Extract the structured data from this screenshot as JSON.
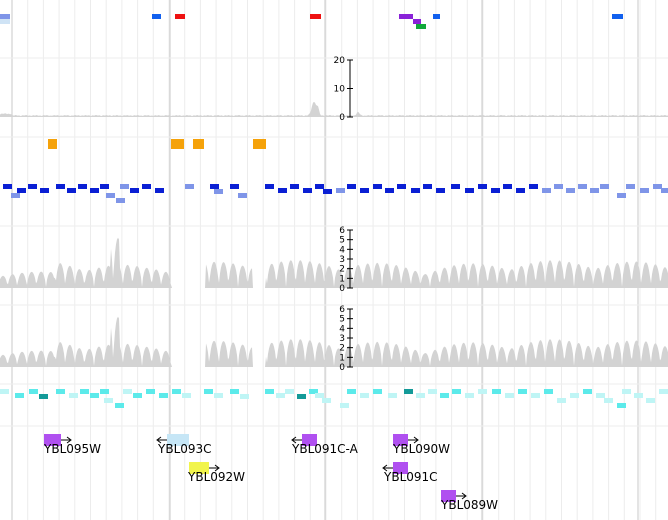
{
  "colors": {
    "grid_major": "#c8c8c8",
    "grid_minor": "#ececec",
    "coverage": "#d3d3d3",
    "tile_dark_blue": "#0a1fd4",
    "tile_light_blue": "#7f95e8",
    "tile_bright_blue": "#1160ee",
    "tile_red": "#ee1111",
    "tile_purple": "#8a22d8",
    "tile_green": "#11a83a",
    "tile_orange": "#f5a20a",
    "tile_cyan": "#5ceaea",
    "tile_pale_cyan": "#bff5f5",
    "tile_teal": "#139a98",
    "gene_violet": "#b050f0",
    "gene_light_blue": "#c6e6f6",
    "gene_yellow": "#f1f44c"
  },
  "tracks": {
    "signal_1": {
      "axis_ticks": [
        "20",
        "10",
        "0"
      ],
      "max": 20
    },
    "signal_2": {
      "axis_ticks": [
        "6",
        "5",
        "4",
        "3",
        "2",
        "1",
        "0"
      ],
      "max": 6
    },
    "signal_3": {
      "axis_ticks": [
        "6",
        "5",
        "4",
        "3",
        "2",
        "1",
        "0"
      ],
      "max": 6
    }
  },
  "genes": [
    {
      "name": "YBL095W",
      "strand": "+",
      "color": "gene_violet"
    },
    {
      "name": "YBL093C",
      "strand": "-",
      "color": "gene_light_blue"
    },
    {
      "name": "YBL092W",
      "strand": "+",
      "color": "gene_yellow"
    },
    {
      "name": "YBL091C-A",
      "strand": "-",
      "color": "gene_violet"
    },
    {
      "name": "YBL090W",
      "strand": "+",
      "color": "gene_violet"
    },
    {
      "name": "YBL091C",
      "strand": "-",
      "color": "gene_violet"
    },
    {
      "name": "YBL089W",
      "strand": "+",
      "color": "gene_violet"
    }
  ]
}
